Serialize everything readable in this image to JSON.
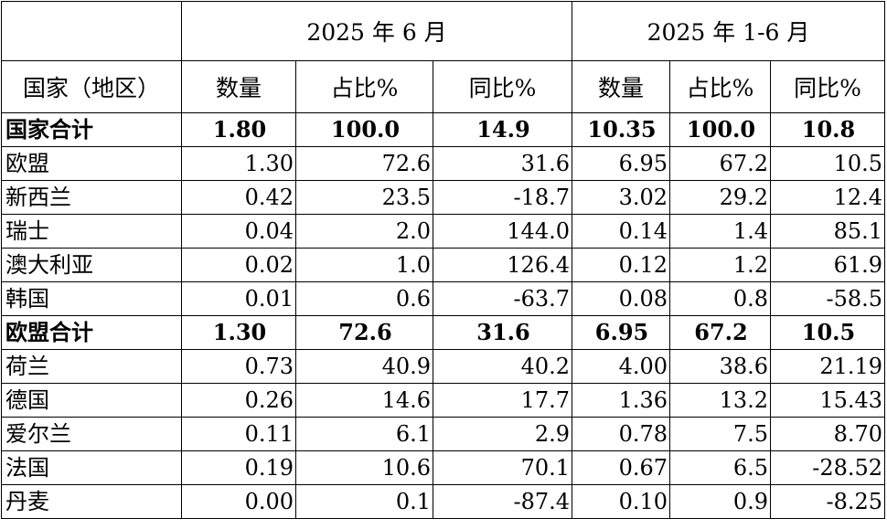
{
  "header": {
    "period1": "2025 年 6 月",
    "period2": "2025 年 1-6 月",
    "col_country": "国家（地区）",
    "col_qty": "数量",
    "col_share": "占比%",
    "col_yoy": "同比%"
  },
  "rows": [
    {
      "name": "国家合计",
      "q1": "1.80",
      "s1": "100.0",
      "y1": "14.9",
      "q2": "10.35",
      "s2": "100.0",
      "y2": "10.8",
      "total": true
    },
    {
      "name": "欧盟",
      "q1": "1.30",
      "s1": "72.6",
      "y1": "31.6",
      "q2": "6.95",
      "s2": "67.2",
      "y2": "10.5"
    },
    {
      "name": "新西兰",
      "q1": "0.42",
      "s1": "23.5",
      "y1": "-18.7",
      "q2": "3.02",
      "s2": "29.2",
      "y2": "12.4"
    },
    {
      "name": "瑞士",
      "q1": "0.04",
      "s1": "2.0",
      "y1": "144.0",
      "q2": "0.14",
      "s2": "1.4",
      "y2": "85.1"
    },
    {
      "name": "澳大利亚",
      "q1": "0.02",
      "s1": "1.0",
      "y1": "126.4",
      "q2": "0.12",
      "s2": "1.2",
      "y2": "61.9"
    },
    {
      "name": "韩国",
      "q1": "0.01",
      "s1": "0.6",
      "y1": "-63.7",
      "q2": "0.08",
      "s2": "0.8",
      "y2": "-58.5"
    },
    {
      "name": "欧盟合计",
      "q1": "1.30",
      "s1": "72.6",
      "y1": "31.6",
      "q2": "6.95",
      "s2": "67.2",
      "y2": "10.5",
      "total": true
    },
    {
      "name": "荷兰",
      "q1": "0.73",
      "s1": "40.9",
      "y1": "40.2",
      "q2": "4.00",
      "s2": "38.6",
      "y2": "21.19"
    },
    {
      "name": "德国",
      "q1": "0.26",
      "s1": "14.6",
      "y1": "17.7",
      "q2": "1.36",
      "s2": "13.2",
      "y2": "15.43"
    },
    {
      "name": "爱尔兰",
      "q1": "0.11",
      "s1": "6.1",
      "y1": "2.9",
      "q2": "0.78",
      "s2": "7.5",
      "y2": "8.70"
    },
    {
      "name": "法国",
      "q1": "0.19",
      "s1": "10.6",
      "y1": "70.1",
      "q2": "0.67",
      "s2": "6.5",
      "y2": "-28.52"
    },
    {
      "name": "丹麦",
      "q1": "0.00",
      "s1": "0.1",
      "y1": "-87.4",
      "q2": "0.10",
      "s2": "0.9",
      "y2": "-8.25"
    }
  ]
}
